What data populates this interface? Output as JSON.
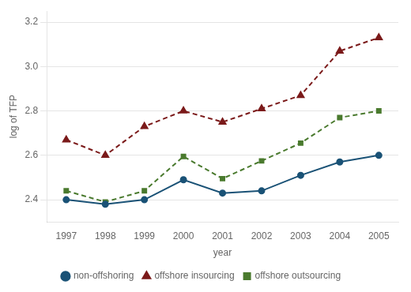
{
  "chart_data": {
    "type": "line",
    "x": [
      1997,
      1998,
      1999,
      2000,
      2001,
      2002,
      2003,
      2004,
      2005
    ],
    "series": [
      {
        "name": "non-offshoring",
        "color": "#1a5276",
        "marker": "circle",
        "line_style": "solid",
        "values": [
          2.4,
          2.38,
          2.4,
          2.49,
          2.43,
          2.44,
          2.51,
          2.57,
          2.6
        ]
      },
      {
        "name": "offshore insourcing",
        "color": "#7b1a1a",
        "marker": "triangle",
        "line_style": "dashed",
        "values": [
          2.67,
          2.6,
          2.73,
          2.8,
          2.75,
          2.81,
          2.87,
          3.07,
          3.13
        ]
      },
      {
        "name": "offshore outsourcing",
        "color": "#4a7a2e",
        "marker": "square",
        "line_style": "dashed",
        "values": [
          2.44,
          2.39,
          2.44,
          2.595,
          2.495,
          2.575,
          2.655,
          2.77,
          2.8
        ]
      }
    ],
    "x_label": "year",
    "y_label": "log of TFP",
    "xlim": [
      1996.5,
      2005.5
    ],
    "xticks": [
      1997,
      1998,
      1999,
      2000,
      2001,
      2002,
      2003,
      2004,
      2005
    ],
    "ylim": [
      2.3,
      3.25
    ],
    "yticks": [
      2.4,
      2.6,
      2.8,
      {
        "value": 3.0,
        "label": "3.0"
      },
      3.2
    ],
    "grid": "y",
    "legend": "bottom"
  }
}
